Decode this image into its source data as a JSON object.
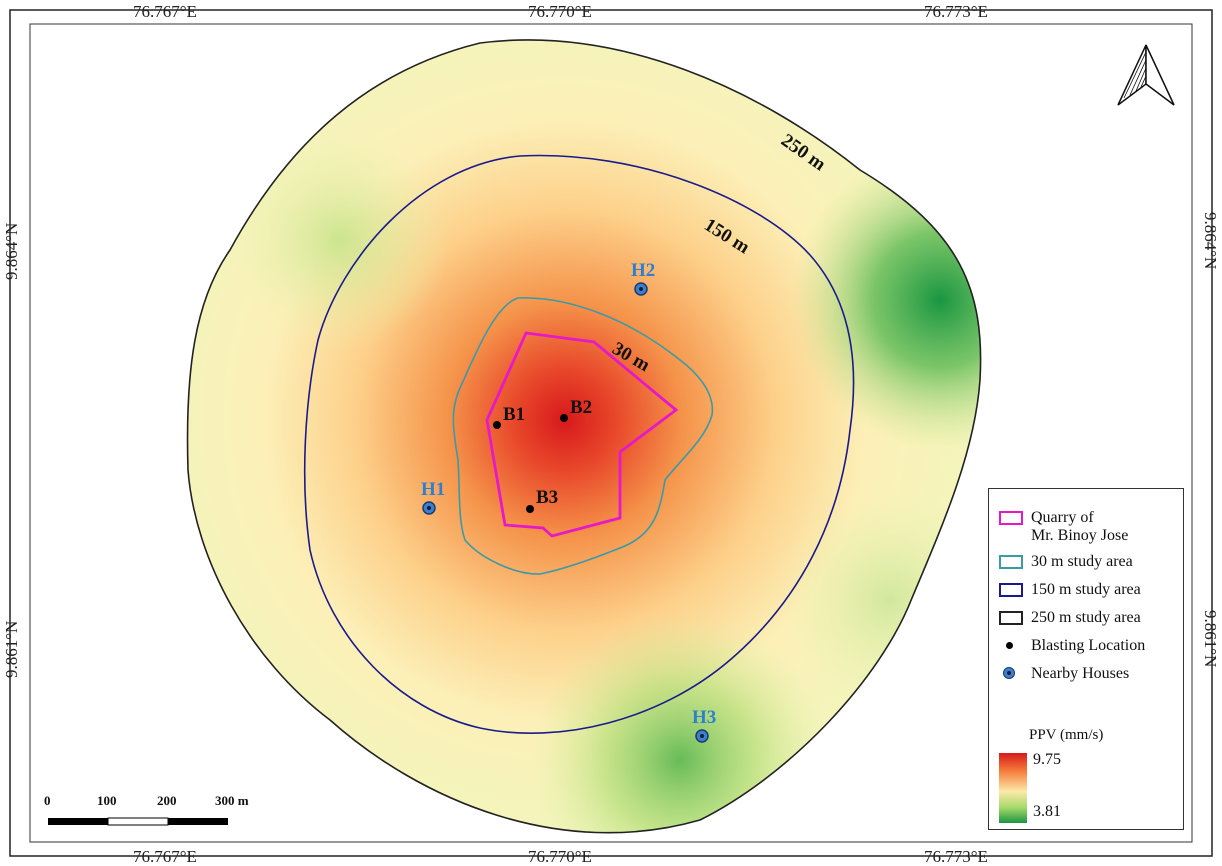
{
  "coordinates": {
    "top": [
      "76.767°E",
      "76.770°E",
      "76.773°E"
    ],
    "bottom": [
      "76.767°E",
      "76.770°E",
      "76.773°E"
    ],
    "left": [
      "9.864°N",
      "9.861°N"
    ],
    "right": [
      "9.864°N",
      "9.861°N"
    ]
  },
  "contour_labels": {
    "c250": "250 m",
    "c150": "150 m",
    "c30": "30 m"
  },
  "blasting_locations": [
    "B1",
    "B2",
    "B3"
  ],
  "nearby_houses": [
    "H1",
    "H2",
    "H3"
  ],
  "legend": {
    "quarry": "Quarry of\nMr. Binoy Jose",
    "quarry_line1": "Quarry of",
    "quarry_line2": "Mr. Binoy Jose",
    "study30": "30 m study area",
    "study150": "150 m study area",
    "study250": "250 m study area",
    "blasting": "Blasting Location",
    "houses": "Nearby Houses",
    "ppv_title": "PPV (mm/s)",
    "ppv_max": "9.75",
    "ppv_min": "3.81"
  },
  "scale_bar": {
    "ticks": [
      "0",
      "100",
      "200",
      "300 m"
    ]
  },
  "colors": {
    "quarry": "#e619c8",
    "study30": "#3a9aa8",
    "study150": "#1a1a8c",
    "study250": "#222222",
    "house_label": "#2f7fd0",
    "ppv_high": "#d7191c",
    "ppv_low": "#1a9641"
  },
  "icons": [
    "north-arrow-icon"
  ]
}
